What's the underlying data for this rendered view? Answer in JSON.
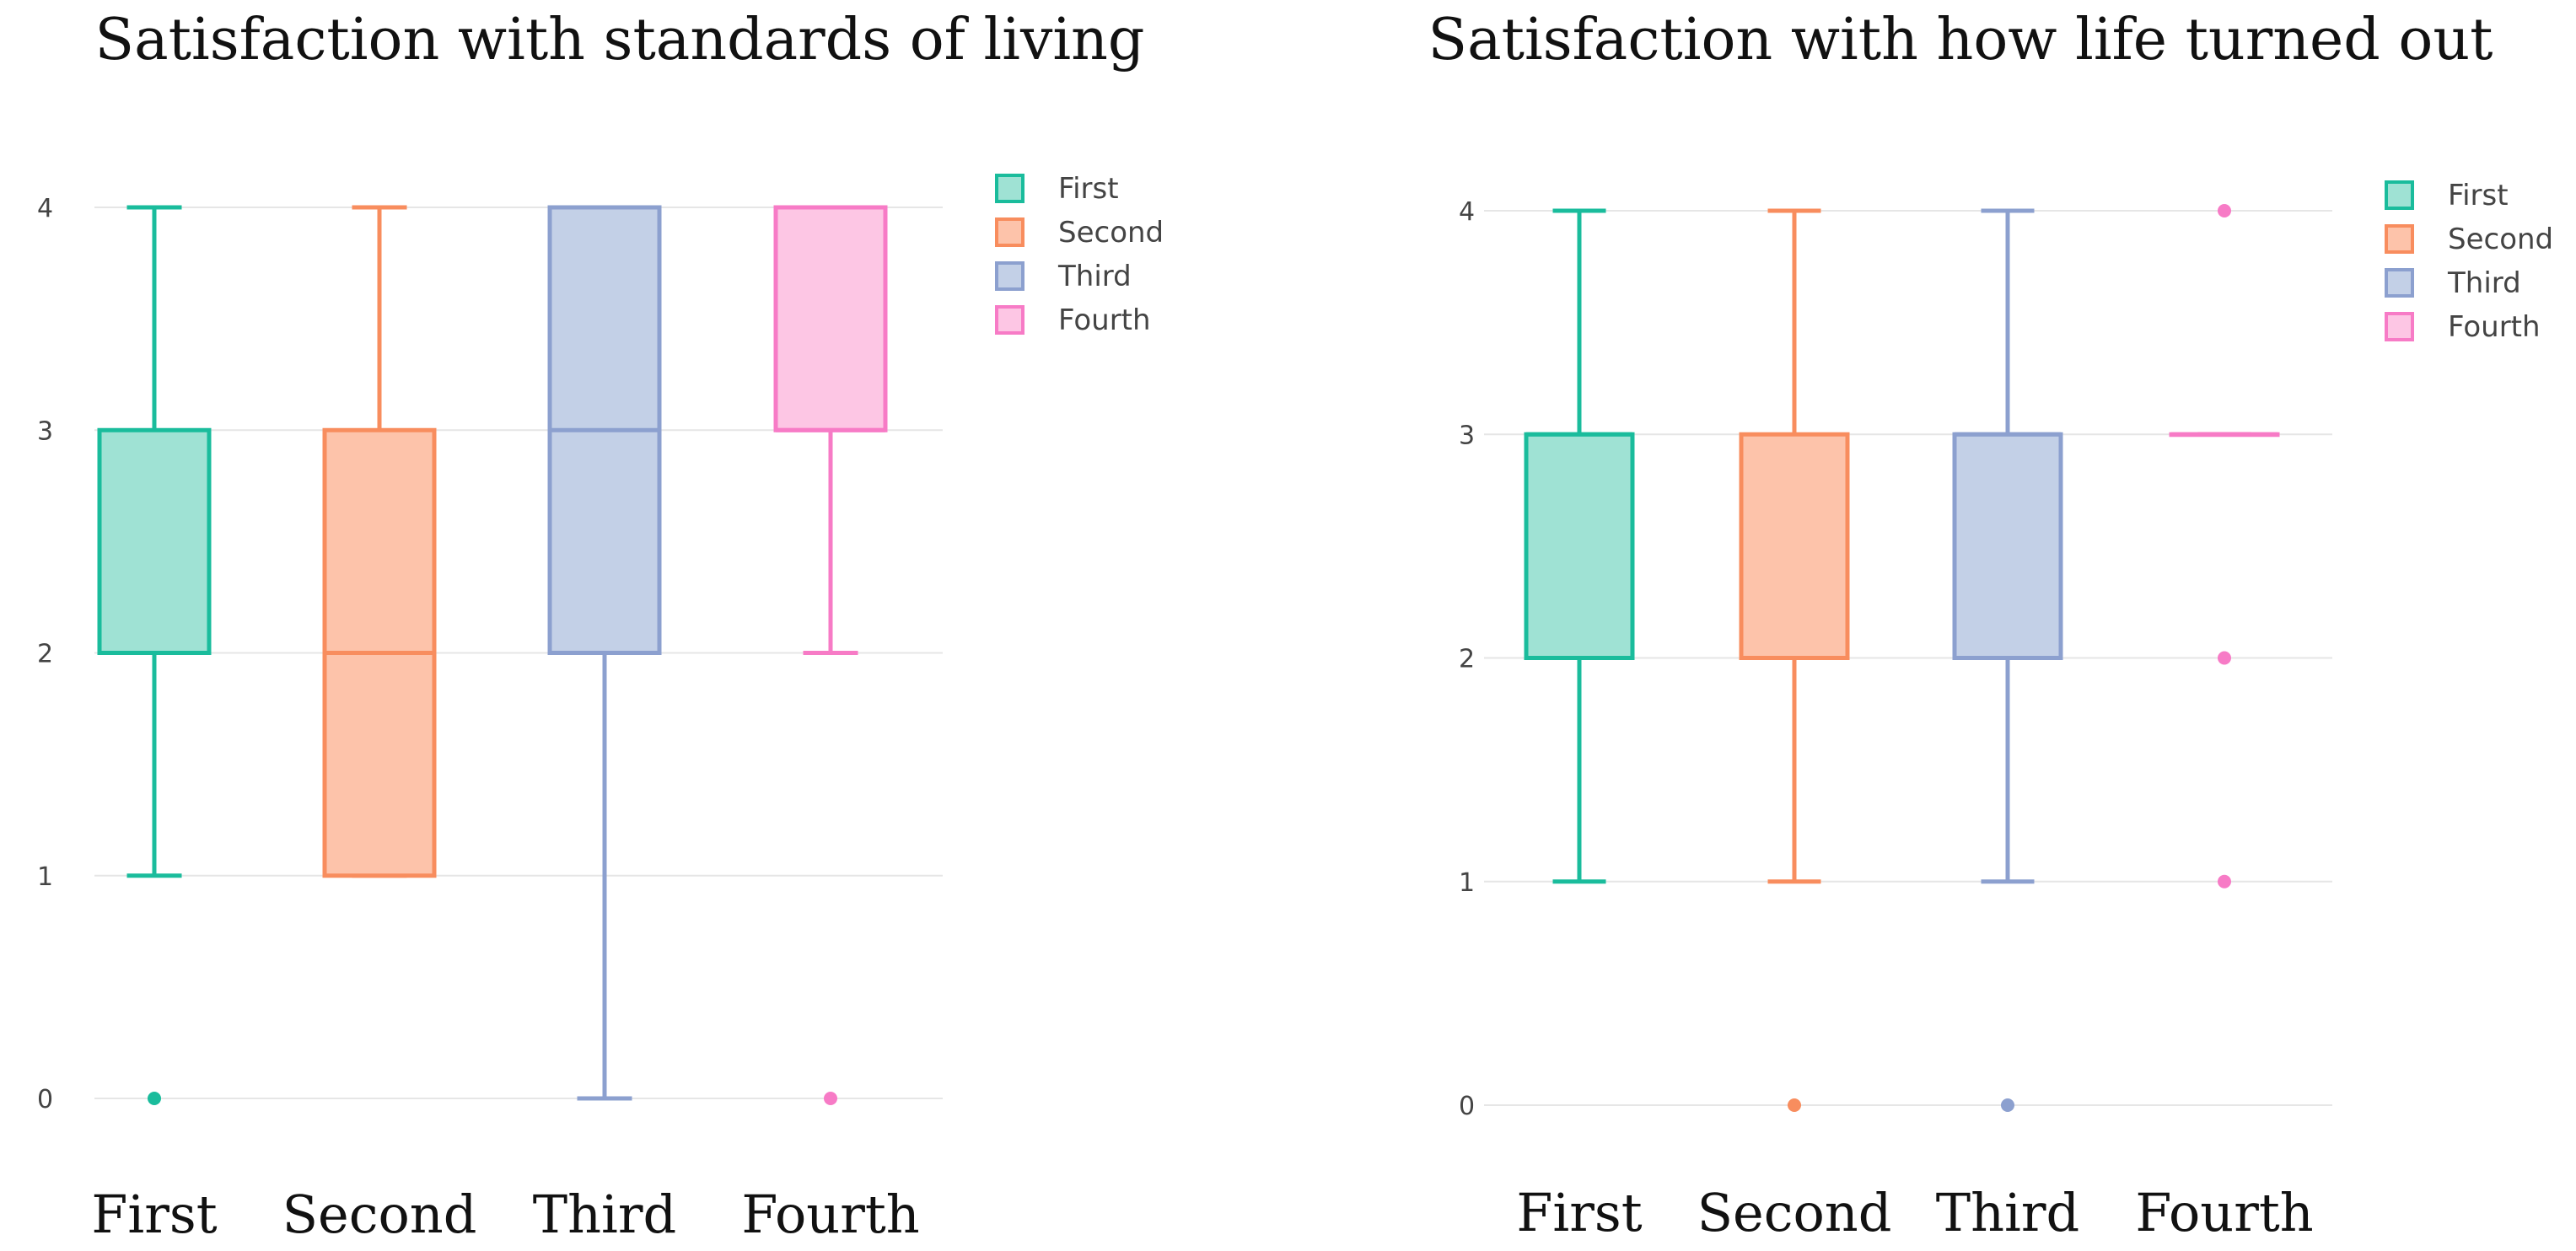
{
  "colors": {
    "First": {
      "line": "#1abc9c",
      "fill": "#9fe2d4"
    },
    "Second": {
      "line": "#f88d5e",
      "fill": "#fdc3aa"
    },
    "Third": {
      "line": "#8ca0cf",
      "fill": "#c3d0e7"
    },
    "Fourth": {
      "line": "#f77bc6",
      "fill": "#fdc6e4"
    },
    "grid": "#e6e6e6"
  },
  "chart_data": [
    {
      "type": "box",
      "title": "Satisfaction with standards of living",
      "categories": [
        "First",
        "Second",
        "Third",
        "Fourth"
      ],
      "legend": [
        "First",
        "Second",
        "Third",
        "Fourth"
      ],
      "legend_position": "top-right",
      "yticks": [
        0,
        1,
        2,
        3,
        4
      ],
      "ylim": [
        -0.1,
        4.2
      ],
      "grid": true,
      "series": [
        {
          "name": "First",
          "min": 1,
          "q1": 2,
          "median": 2,
          "q3": 3,
          "max": 4,
          "outliers": [
            0
          ]
        },
        {
          "name": "Second",
          "min": 1,
          "q1": 1,
          "median": 2,
          "q3": 3,
          "max": 4,
          "outliers": []
        },
        {
          "name": "Third",
          "min": 0,
          "q1": 2,
          "median": 3,
          "q3": 4,
          "max": 4,
          "outliers": []
        },
        {
          "name": "Fourth",
          "min": 2,
          "q1": 3,
          "median": 3,
          "q3": 4,
          "max": 4,
          "outliers": [
            0
          ]
        }
      ]
    },
    {
      "type": "box",
      "title": "Satisfaction with how life turned out",
      "categories": [
        "First",
        "Second",
        "Third",
        "Fourth"
      ],
      "legend": [
        "First",
        "Second",
        "Third",
        "Fourth"
      ],
      "legend_position": "top-right",
      "yticks": [
        0,
        1,
        2,
        3,
        4
      ],
      "ylim": [
        -0.1,
        4.2
      ],
      "grid": true,
      "series": [
        {
          "name": "First",
          "min": 1,
          "q1": 2,
          "median": 3,
          "q3": 3,
          "max": 4,
          "outliers": []
        },
        {
          "name": "Second",
          "min": 1,
          "q1": 2,
          "median": 2,
          "q3": 3,
          "max": 4,
          "outliers": [
            0
          ]
        },
        {
          "name": "Third",
          "min": 1,
          "q1": 2,
          "median": 3,
          "q3": 3,
          "max": 4,
          "outliers": [
            0
          ]
        },
        {
          "name": "Fourth",
          "min": 3,
          "q1": 3,
          "median": 3,
          "q3": 3,
          "max": 3,
          "outliers": [
            4,
            2,
            1
          ]
        }
      ]
    }
  ]
}
